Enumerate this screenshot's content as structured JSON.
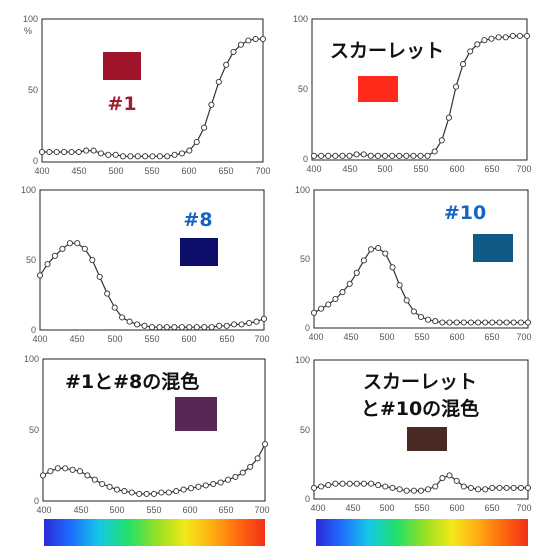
{
  "chart_data": [
    {
      "type": "line",
      "id": "p1",
      "label": "#1",
      "label_color": "#a01f2d",
      "swatch_color": "#a0142b",
      "xlim": [
        400,
        700
      ],
      "ylim": [
        0,
        100
      ],
      "x_ticks": [
        "400",
        "450",
        "500",
        "550",
        "600",
        "650",
        "700"
      ],
      "y_ticks": [
        "0",
        "50",
        "100"
      ],
      "y_unit": "%",
      "x": [
        400,
        410,
        420,
        430,
        440,
        450,
        460,
        470,
        480,
        490,
        500,
        510,
        520,
        530,
        540,
        550,
        560,
        570,
        580,
        590,
        600,
        610,
        620,
        630,
        640,
        650,
        660,
        670,
        680,
        690,
        700
      ],
      "y": [
        7,
        7,
        7,
        7,
        7,
        7,
        8,
        8,
        6,
        5,
        5,
        4,
        4,
        4,
        4,
        4,
        4,
        4,
        5,
        6,
        8,
        14,
        24,
        40,
        56,
        68,
        77,
        82,
        85,
        86,
        86
      ]
    },
    {
      "type": "line",
      "id": "p2",
      "label": "スカーレット",
      "label_color": "#111111",
      "swatch_color": "#ff2a1a",
      "xlim": [
        400,
        700
      ],
      "ylim": [
        0,
        100
      ],
      "x_ticks": [
        "400",
        "450",
        "500",
        "550",
        "600",
        "650",
        "700"
      ],
      "y_ticks": [
        "0",
        "50",
        "100"
      ],
      "y_unit": "",
      "x": [
        400,
        410,
        420,
        430,
        440,
        450,
        460,
        470,
        480,
        490,
        500,
        510,
        520,
        530,
        540,
        550,
        560,
        570,
        580,
        590,
        600,
        610,
        620,
        630,
        640,
        650,
        660,
        670,
        680,
        690,
        700
      ],
      "y": [
        3,
        3,
        3,
        3,
        3,
        3,
        4,
        4,
        3,
        3,
        3,
        3,
        3,
        3,
        3,
        3,
        3,
        6,
        14,
        30,
        52,
        68,
        77,
        82,
        85,
        86,
        87,
        87,
        88,
        88,
        88
      ]
    },
    {
      "type": "line",
      "id": "p3",
      "label": "#8",
      "label_color": "#1565c0",
      "swatch_color": "#0d0e6a",
      "xlim": [
        400,
        700
      ],
      "ylim": [
        0,
        100
      ],
      "x_ticks": [
        "400",
        "450",
        "500",
        "550",
        "600",
        "650",
        "700"
      ],
      "y_ticks": [
        "0",
        "50",
        "100"
      ],
      "y_unit": "",
      "x": [
        400,
        410,
        420,
        430,
        440,
        450,
        460,
        470,
        480,
        490,
        500,
        510,
        520,
        530,
        540,
        550,
        560,
        570,
        580,
        590,
        600,
        610,
        620,
        630,
        640,
        650,
        660,
        670,
        680,
        690,
        700
      ],
      "y": [
        39,
        47,
        53,
        58,
        62,
        62,
        58,
        50,
        38,
        26,
        16,
        9,
        6,
        4,
        3,
        2,
        2,
        2,
        2,
        2,
        2,
        2,
        2,
        2,
        3,
        3,
        4,
        4,
        5,
        6,
        8
      ]
    },
    {
      "type": "line",
      "id": "p4",
      "label": "#10",
      "label_color": "#1565c0",
      "swatch_color": "#0f5a86",
      "xlim": [
        400,
        700
      ],
      "ylim": [
        0,
        100
      ],
      "x_ticks": [
        "400",
        "450",
        "500",
        "550",
        "600",
        "650",
        "700"
      ],
      "y_ticks": [
        "0",
        "50",
        "100"
      ],
      "y_unit": "",
      "x": [
        400,
        410,
        420,
        430,
        440,
        450,
        460,
        470,
        480,
        490,
        500,
        510,
        520,
        530,
        540,
        550,
        560,
        570,
        580,
        590,
        600,
        610,
        620,
        630,
        640,
        650,
        660,
        670,
        680,
        690,
        700
      ],
      "y": [
        11,
        14,
        17,
        21,
        26,
        32,
        40,
        49,
        57,
        58,
        54,
        44,
        31,
        20,
        12,
        8,
        6,
        5,
        4,
        4,
        4,
        4,
        4,
        4,
        4,
        4,
        4,
        4,
        4,
        4,
        4
      ]
    },
    {
      "type": "line",
      "id": "p5",
      "label": "#1と#8の混色",
      "label_color": "#111111",
      "swatch_color": "#5a2655",
      "xlim": [
        400,
        700
      ],
      "ylim": [
        0,
        100
      ],
      "x_ticks": [
        "400",
        "450",
        "500",
        "550",
        "600",
        "650",
        "700"
      ],
      "y_ticks": [
        "0",
        "50",
        "100"
      ],
      "y_unit": "",
      "x": [
        400,
        410,
        420,
        430,
        440,
        450,
        460,
        470,
        480,
        490,
        500,
        510,
        520,
        530,
        540,
        550,
        560,
        570,
        580,
        590,
        600,
        610,
        620,
        630,
        640,
        650,
        660,
        670,
        680,
        690,
        700
      ],
      "y": [
        18,
        21,
        23,
        23,
        22,
        21,
        18,
        15,
        12,
        10,
        8,
        7,
        6,
        5,
        5,
        5,
        6,
        6,
        7,
        8,
        9,
        10,
        11,
        12,
        13,
        15,
        17,
        20,
        24,
        30,
        40
      ]
    },
    {
      "type": "line",
      "id": "p6",
      "label": "スカーレット\nと#10の混色",
      "label_color": "#111111",
      "swatch_color": "#4a2a22",
      "xlim": [
        400,
        700
      ],
      "ylim": [
        0,
        100
      ],
      "x_ticks": [
        "400",
        "450",
        "500",
        "550",
        "600",
        "650",
        "700"
      ],
      "y_ticks": [
        "0",
        "50",
        "100"
      ],
      "y_unit": "",
      "x": [
        400,
        410,
        420,
        430,
        440,
        450,
        460,
        470,
        480,
        490,
        500,
        510,
        520,
        530,
        540,
        550,
        560,
        570,
        580,
        590,
        600,
        610,
        620,
        630,
        640,
        650,
        660,
        670,
        680,
        690,
        700
      ],
      "y": [
        8,
        9,
        10,
        11,
        11,
        11,
        11,
        11,
        11,
        10,
        9,
        8,
        7,
        6,
        6,
        6,
        7,
        9,
        15,
        17,
        13,
        9,
        8,
        7,
        7,
        8,
        8,
        8,
        8,
        8,
        8
      ]
    }
  ]
}
